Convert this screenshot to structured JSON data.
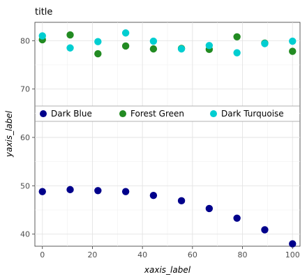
{
  "chart_data": {
    "type": "scatter",
    "title": "title",
    "xlabel": "xaxis_label",
    "ylabel": "yaxis_label",
    "xlim": [
      -3,
      103
    ],
    "ylim": [
      37.5,
      83.8
    ],
    "grid": true,
    "legend_position": "center",
    "x_ticks": [
      0,
      20,
      40,
      60,
      80,
      100
    ],
    "y_ticks": [
      40,
      50,
      60,
      70,
      80
    ],
    "series": [
      {
        "name": "Dark Blue",
        "color": "#00008B",
        "x": [
          0,
          11.1,
          22.2,
          33.3,
          44.4,
          55.6,
          66.7,
          77.8,
          88.9,
          100
        ],
        "y": [
          48.8,
          49.2,
          49.0,
          48.8,
          48.0,
          46.9,
          45.3,
          43.3,
          40.9,
          38.0
        ]
      },
      {
        "name": "Forest Green",
        "color": "#228B22",
        "x": [
          0,
          11.1,
          22.2,
          33.3,
          44.4,
          55.6,
          66.7,
          77.8,
          88.9,
          100
        ],
        "y": [
          80.2,
          81.2,
          77.3,
          78.9,
          78.3,
          78.4,
          78.2,
          80.8,
          79.5,
          77.8
        ]
      },
      {
        "name": "Dark Turquoise",
        "color": "#00CED1",
        "x": [
          0,
          11.1,
          22.2,
          33.3,
          44.4,
          55.6,
          66.7,
          77.8,
          88.9,
          100
        ],
        "y": [
          81.0,
          78.5,
          79.8,
          81.6,
          79.9,
          78.3,
          79.0,
          77.5,
          79.4,
          79.9
        ]
      }
    ]
  }
}
